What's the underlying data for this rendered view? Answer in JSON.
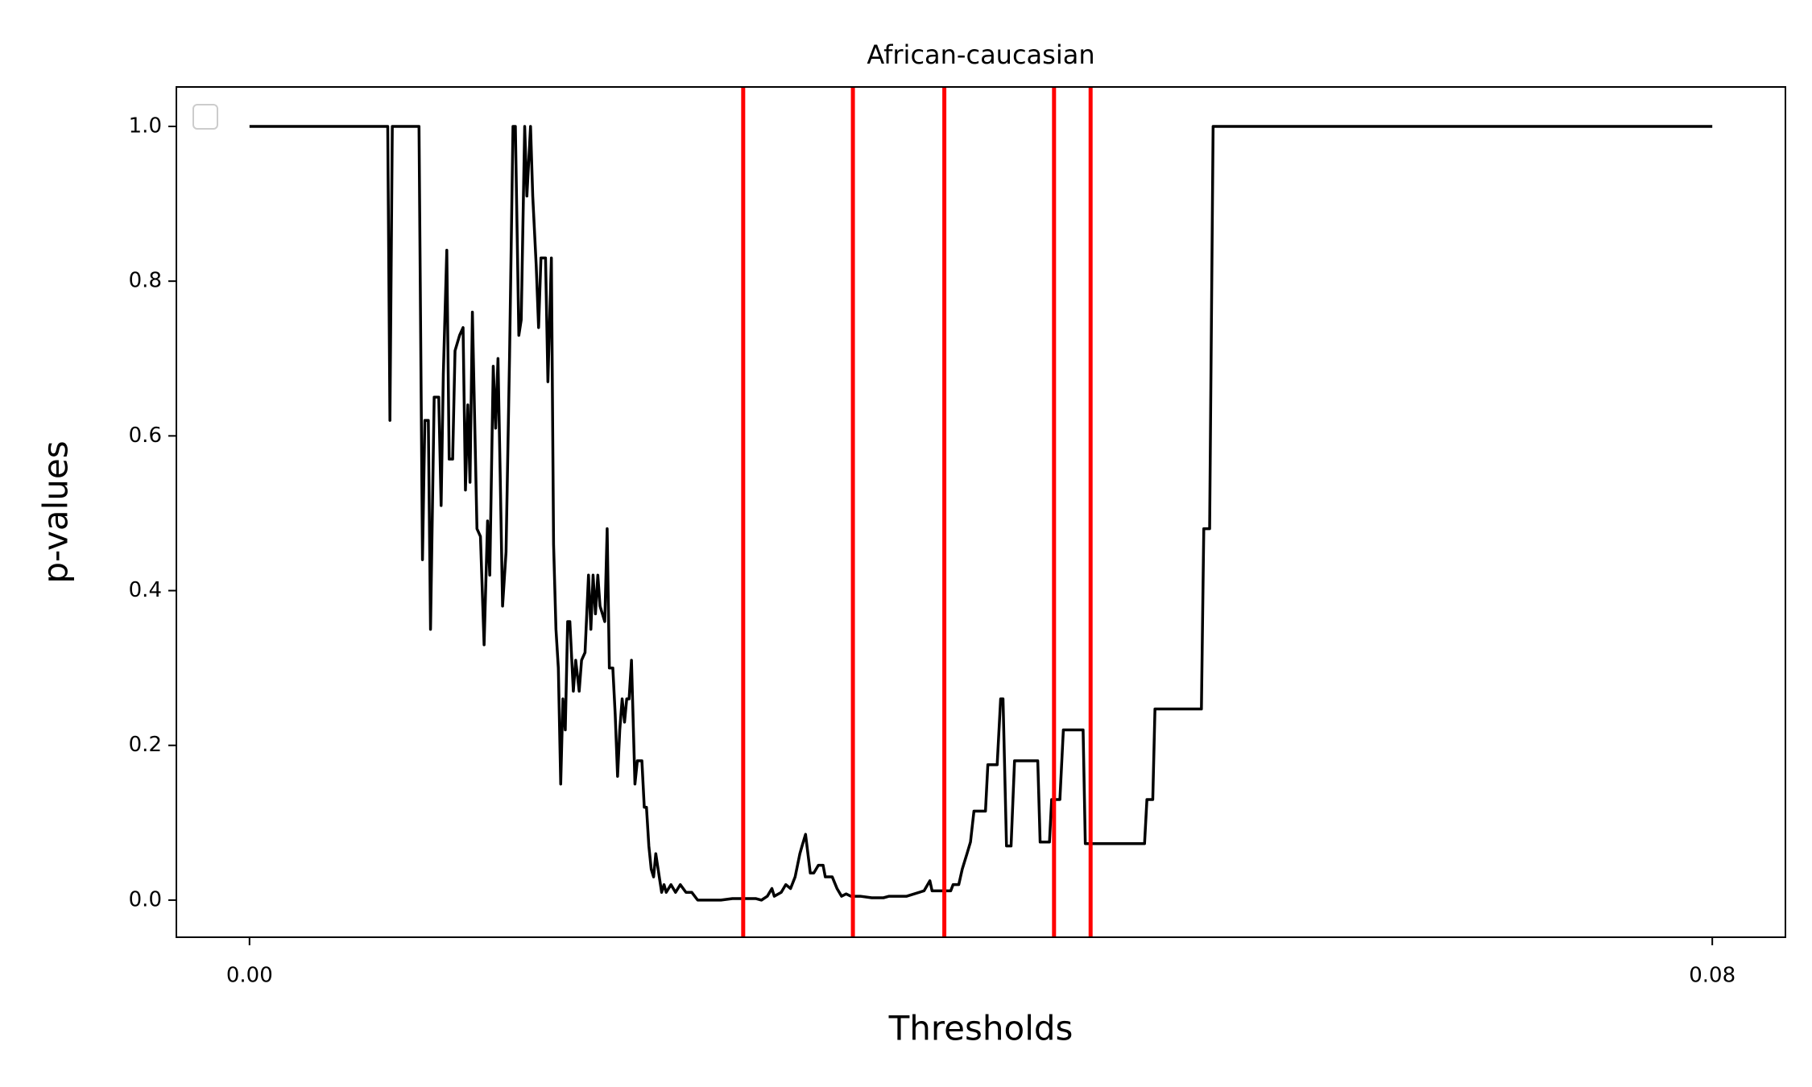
{
  "chart_data": {
    "type": "line",
    "title": "African-caucasian",
    "xlabel": "Thresholds",
    "ylabel": "p-values",
    "x": [
      0,
      0.00756,
      0.00768,
      0.00781,
      0.00927,
      0.00946,
      0.00959,
      0.00978,
      0.0099,
      0.0101,
      0.01035,
      0.01048,
      0.0106,
      0.01079,
      0.01092,
      0.01111,
      0.01124,
      0.01149,
      0.01168,
      0.01181,
      0.01194,
      0.01206,
      0.01219,
      0.01244,
      0.01263,
      0.01283,
      0.01302,
      0.01314,
      0.01333,
      0.01346,
      0.01359,
      0.01371,
      0.01384,
      0.01403,
      0.01422,
      0.01441,
      0.01454,
      0.01473,
      0.01486,
      0.01505,
      0.01517,
      0.01537,
      0.01549,
      0.01568,
      0.01581,
      0.01594,
      0.01619,
      0.01632,
      0.01651,
      0.01663,
      0.01676,
      0.01689,
      0.01702,
      0.01714,
      0.01727,
      0.0174,
      0.01752,
      0.01771,
      0.01784,
      0.01803,
      0.01816,
      0.01835,
      0.01854,
      0.01867,
      0.01879,
      0.01892,
      0.01905,
      0.01917,
      0.01943,
      0.01956,
      0.01968,
      0.01987,
      0.02,
      0.02013,
      0.02025,
      0.02038,
      0.02051,
      0.02063,
      0.02076,
      0.02089,
      0.02108,
      0.02121,
      0.02146,
      0.02159,
      0.02171,
      0.02184,
      0.02197,
      0.0221,
      0.02222,
      0.02241,
      0.02254,
      0.02267,
      0.02279,
      0.02305,
      0.0233,
      0.02356,
      0.02387,
      0.02419,
      0.02451,
      0.02514,
      0.02578,
      0.02641,
      0.02705,
      0.02768,
      0.028,
      0.02832,
      0.02857,
      0.0287,
      0.02908,
      0.02933,
      0.02959,
      0.02984,
      0.0301,
      0.03022,
      0.03041,
      0.03054,
      0.03067,
      0.03086,
      0.03111,
      0.03137,
      0.03149,
      0.03187,
      0.03213,
      0.03238,
      0.03263,
      0.03289,
      0.0334,
      0.03403,
      0.03467,
      0.03498,
      0.03594,
      0.03689,
      0.03721,
      0.03733,
      0.03835,
      0.03848,
      0.03879,
      0.03898,
      0.03924,
      0.03943,
      0.03962,
      0.04025,
      0.04038,
      0.04089,
      0.04108,
      0.04121,
      0.0414,
      0.04165,
      0.04184,
      0.04311,
      0.04324,
      0.04375,
      0.04387,
      0.04432,
      0.04451,
      0.04559,
      0.04571,
      0.04895,
      0.04908,
      0.0494,
      0.04952,
      0.05206,
      0.05219,
      0.05251,
      0.0527,
      0.08
    ],
    "values": [
      1.0,
      1.0,
      0.62,
      1.0,
      1.0,
      0.44,
      0.62,
      0.62,
      0.35,
      0.65,
      0.65,
      0.51,
      0.68,
      0.84,
      0.57,
      0.57,
      0.71,
      0.73,
      0.74,
      0.53,
      0.64,
      0.54,
      0.76,
      0.48,
      0.47,
      0.33,
      0.49,
      0.42,
      0.69,
      0.61,
      0.7,
      0.55,
      0.38,
      0.45,
      0.7,
      1.0,
      1.0,
      0.73,
      0.75,
      1.0,
      0.91,
      1.0,
      0.91,
      0.82,
      0.74,
      0.83,
      0.83,
      0.67,
      0.83,
      0.46,
      0.35,
      0.3,
      0.15,
      0.26,
      0.22,
      0.36,
      0.36,
      0.27,
      0.31,
      0.27,
      0.31,
      0.32,
      0.42,
      0.35,
      0.42,
      0.37,
      0.42,
      0.38,
      0.36,
      0.48,
      0.3,
      0.3,
      0.24,
      0.16,
      0.22,
      0.26,
      0.23,
      0.26,
      0.26,
      0.31,
      0.15,
      0.18,
      0.18,
      0.12,
      0.12,
      0.07,
      0.04,
      0.03,
      0.06,
      0.03,
      0.01,
      0.02,
      0.01,
      0.02,
      0.01,
      0.02,
      0.01,
      0.01,
      0.0,
      0.0,
      0.0,
      0.002,
      0.002,
      0.002,
      0.0,
      0.005,
      0.015,
      0.005,
      0.01,
      0.02,
      0.015,
      0.03,
      0.06,
      0.07,
      0.085,
      0.06,
      0.035,
      0.035,
      0.045,
      0.045,
      0.03,
      0.03,
      0.015,
      0.005,
      0.008,
      0.005,
      0.005,
      0.003,
      0.003,
      0.005,
      0.005,
      0.012,
      0.025,
      0.012,
      0.012,
      0.02,
      0.02,
      0.04,
      0.06,
      0.075,
      0.115,
      0.115,
      0.175,
      0.175,
      0.26,
      0.26,
      0.07,
      0.07,
      0.18,
      0.18,
      0.075,
      0.075,
      0.13,
      0.13,
      0.22,
      0.22,
      0.073,
      0.073,
      0.13,
      0.13,
      0.247,
      0.247,
      0.48,
      0.48,
      1.0,
      1.0
    ],
    "color": "#000000",
    "vlines": {
      "values": [
        0.027,
        0.033,
        0.038,
        0.044,
        0.046
      ],
      "color": "#ff0000"
    },
    "xlim": [
      -0.004,
      0.084
    ],
    "ylim": [
      -0.048,
      1.051
    ],
    "xticks": [
      {
        "value": 0,
        "label": "0.00"
      },
      0.08
    ],
    "yticks": [
      {
        "value": 0,
        "label": "0.0"
      },
      0.2,
      0.4,
      0.6,
      0.8,
      {
        "value": 1,
        "label": "1.0"
      }
    ],
    "grid": false
  }
}
